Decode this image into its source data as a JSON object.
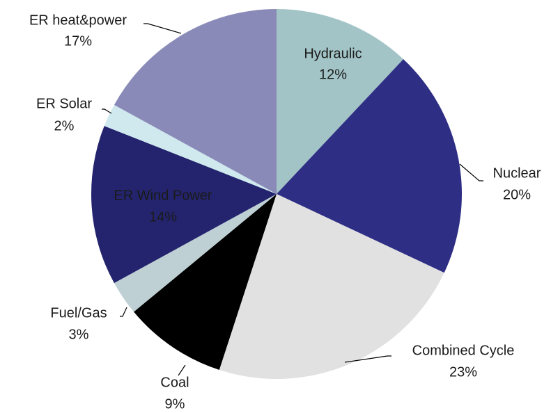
{
  "chart_data": {
    "type": "pie",
    "categories": [
      "Hydraulic",
      "Nuclear",
      "Combined Cycle",
      "Coal",
      "Fuel/Gas",
      "ER Wind Power",
      "ER Solar",
      "ER heat&power"
    ],
    "values": [
      12,
      20,
      23,
      9,
      3,
      14,
      2,
      17
    ],
    "value_labels": [
      "12%",
      "20%",
      "23%",
      "9%",
      "3%",
      "14%",
      "2%",
      "17%"
    ],
    "colors": [
      "#a3c4c6",
      "#2e2e85",
      "#e1e1e1",
      "#000000",
      "#bfd0d4",
      "#24246e",
      "#cfe9ee",
      "#8a8ab9"
    ]
  }
}
